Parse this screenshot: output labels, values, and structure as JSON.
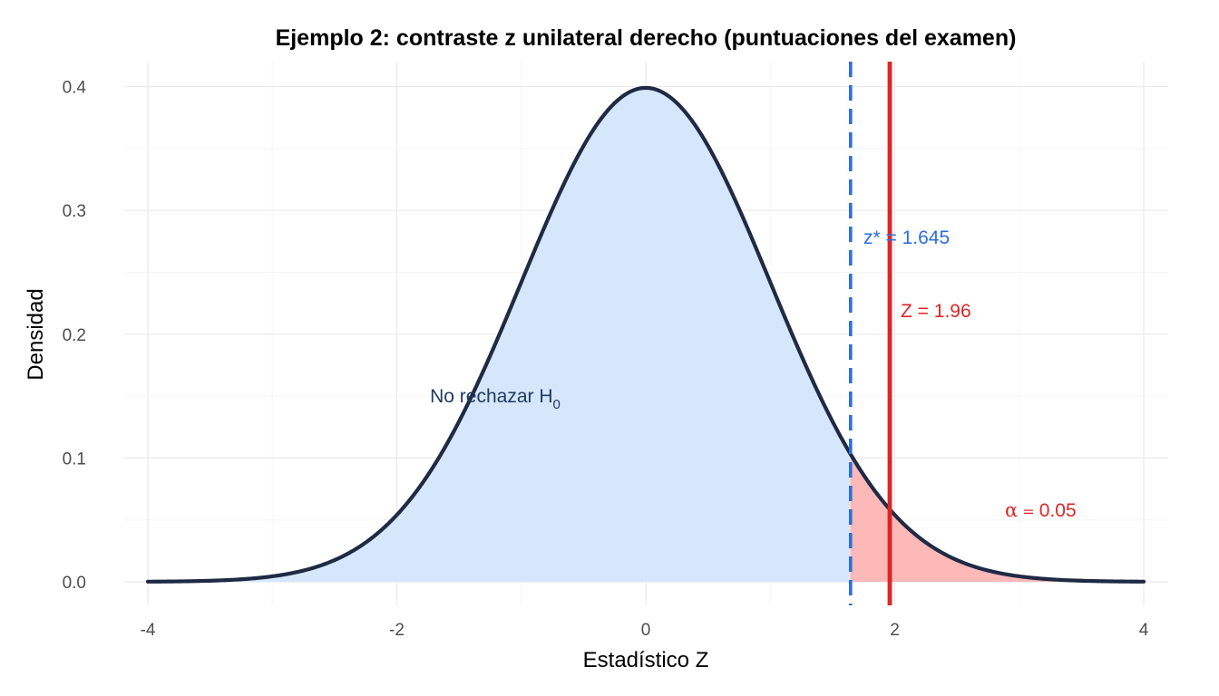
{
  "chart_data": {
    "type": "area",
    "title": "Ejemplo 2: contraste z unilateral derecho (puntuaciones del examen)",
    "xlabel": "Estadístico Z",
    "ylabel": "Densidad",
    "xlim": [
      -4,
      4
    ],
    "ylim": [
      0,
      0.4
    ],
    "x_ticks": [
      -4,
      -2,
      0,
      2,
      4
    ],
    "x_tick_labels": [
      "-4",
      "-2",
      "0",
      "2",
      "4"
    ],
    "y_ticks": [
      0.0,
      0.1,
      0.2,
      0.3,
      0.4
    ],
    "y_tick_labels": [
      "0.0",
      "0.1",
      "0.2",
      "0.3",
      "0.4"
    ],
    "grid": true,
    "distribution": "standard normal density",
    "critical_value": 1.645,
    "z_statistic": 1.96,
    "alpha": 0.05,
    "annotations": {
      "acceptance_main": "No rechazar H",
      "acceptance_sub": "0",
      "critical_label": "z* = 1.645",
      "statistic_label": "Z = 1.96",
      "alpha_symbol": "α",
      "alpha_eq": " = ",
      "alpha_value": "0.05"
    },
    "colors": {
      "curve": "#1f2a44",
      "acceptance_fill": "#d6e7fb",
      "rejection_fill": "#fdb8b8",
      "critical_line": "#2b6ee0",
      "statistic_line": "#dc2626",
      "acceptance_text": "#1f3a5f",
      "grid_major": "#ebebeb",
      "grid_minor": "#f5f5f5"
    }
  }
}
